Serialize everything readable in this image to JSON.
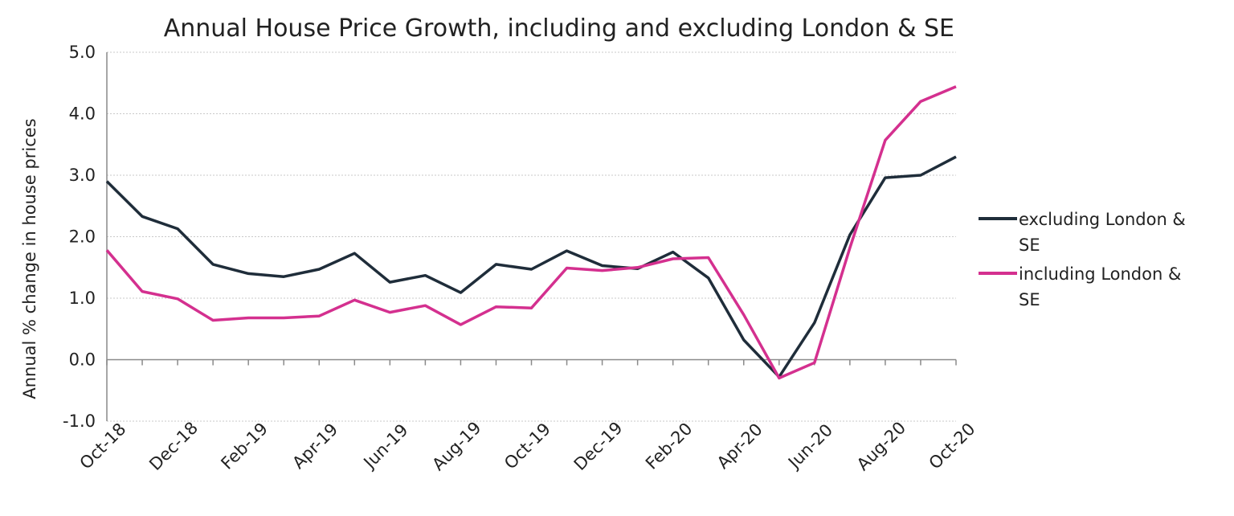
{
  "chart_data": {
    "type": "line",
    "title": "Annual House Price Growth, including and excluding London & SE",
    "ylabel": "Annual % change in house prices",
    "xlabel": "",
    "ylim": [
      -1.0,
      5.0
    ],
    "yticks": [
      "-1.0",
      "0.0",
      "1.0",
      "2.0",
      "3.0",
      "4.0",
      "5.0"
    ],
    "x": [
      "Oct-18",
      "Nov-18",
      "Dec-18",
      "Jan-19",
      "Feb-19",
      "Mar-19",
      "Apr-19",
      "May-19",
      "Jun-19",
      "Jul-19",
      "Aug-19",
      "Sep-19",
      "Oct-19",
      "Nov-19",
      "Dec-19",
      "Jan-20",
      "Feb-20",
      "Mar-20",
      "Apr-20",
      "May-20",
      "Jun-20",
      "Jul-20",
      "Aug-20",
      "Sep-20",
      "Oct-20"
    ],
    "xticklabels": [
      "Oct-18",
      "Dec-18",
      "Feb-19",
      "Apr-19",
      "Jun-19",
      "Aug-19",
      "Oct-19",
      "Dec-19",
      "Feb-20",
      "Apr-20",
      "Jun-20",
      "Aug-20",
      "Oct-20"
    ],
    "grid": true,
    "legend_position": "right",
    "series": [
      {
        "name": "excluding London & SE",
        "name_lines": [
          "excluding London &",
          "SE"
        ],
        "color": "#1f2d3a",
        "values": [
          2.9,
          2.33,
          2.13,
          1.55,
          1.4,
          1.35,
          1.47,
          1.73,
          1.26,
          1.37,
          1.09,
          1.55,
          1.47,
          1.77,
          1.53,
          1.48,
          1.75,
          1.33,
          0.32,
          -0.28,
          0.6,
          2.03,
          2.96,
          3.0,
          3.3
        ]
      },
      {
        "name": "including London & SE",
        "name_lines": [
          "including London &",
          "SE"
        ],
        "color": "#d4308f",
        "values": [
          1.78,
          1.11,
          0.99,
          0.64,
          0.68,
          0.68,
          0.71,
          0.97,
          0.77,
          0.88,
          0.57,
          0.86,
          0.84,
          1.49,
          1.45,
          1.5,
          1.64,
          1.66,
          0.73,
          -0.3,
          -0.05,
          1.82,
          3.57,
          4.2,
          4.44
        ]
      }
    ]
  }
}
